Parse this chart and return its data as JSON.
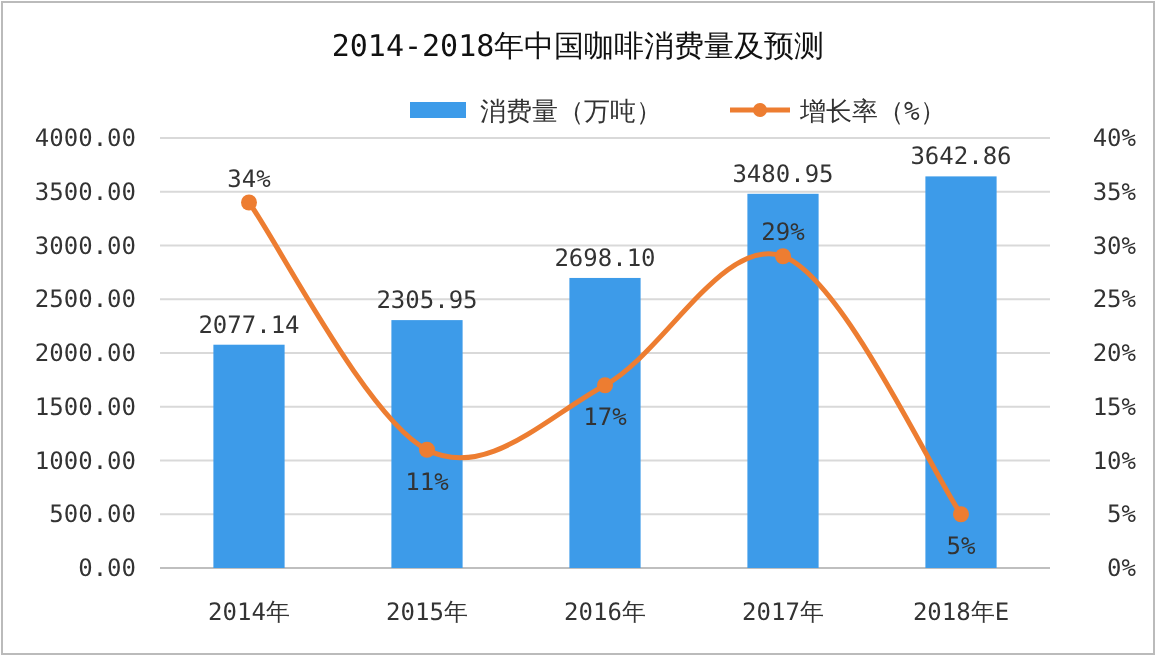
{
  "chart_data": {
    "type": "bar",
    "title": "2014-2018年中国咖啡消费量及预测",
    "categories": [
      "2014年",
      "2015年",
      "2016年",
      "2017年",
      "2018年E"
    ],
    "series": [
      {
        "name": "消费量（万吨）",
        "color": "#3d9be9",
        "values": [
          2077.14,
          2305.95,
          2698.1,
          3480.95,
          3642.86
        ],
        "value_labels": [
          "2077.14",
          "2305.95",
          "2698.10",
          "3480.95",
          "3642.86"
        ]
      },
      {
        "name": "增长率（%）",
        "type": "line",
        "axis": "y2",
        "color": "#ed7d31",
        "values": [
          34,
          11,
          17,
          29,
          5
        ],
        "value_labels": [
          "34%",
          "11%",
          "17%",
          "29%",
          "5%"
        ]
      }
    ],
    "ylim": [
      0,
      4000
    ],
    "yticks": [
      {
        "value": 0,
        "label": "0.00"
      },
      {
        "value": 500,
        "label": "500.00"
      },
      {
        "value": 1000,
        "label": "1000.00"
      },
      {
        "value": 1500,
        "label": "1500.00"
      },
      {
        "value": 2000,
        "label": "2000.00"
      },
      {
        "value": 2500,
        "label": "2500.00"
      },
      {
        "value": 3000,
        "label": "3000.00"
      },
      {
        "value": 3500,
        "label": "3500.00"
      },
      {
        "value": 4000,
        "label": "4000.00"
      }
    ],
    "y2lim": [
      0,
      40
    ],
    "y2ticks": [
      {
        "value": 0,
        "label": "0%"
      },
      {
        "value": 5,
        "label": "5%"
      },
      {
        "value": 10,
        "label": "10%"
      },
      {
        "value": 15,
        "label": "15%"
      },
      {
        "value": 20,
        "label": "20%"
      },
      {
        "value": 25,
        "label": "25%"
      },
      {
        "value": 30,
        "label": "30%"
      },
      {
        "value": 35,
        "label": "35%"
      },
      {
        "value": 40,
        "label": "40%"
      }
    ],
    "grid": "y",
    "legend": "top",
    "marker": "circle",
    "line_style": "solid"
  }
}
